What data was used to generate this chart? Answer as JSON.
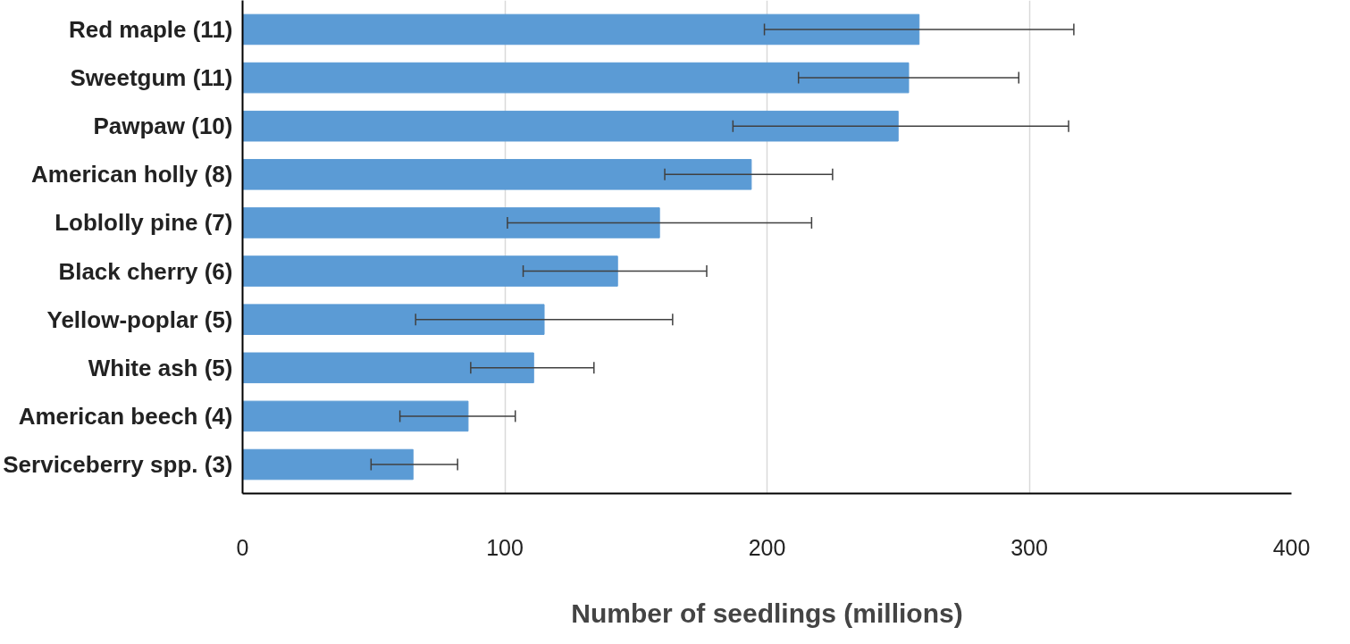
{
  "chart_data": {
    "type": "bar",
    "orientation": "horizontal",
    "xlabel": "Number of seedlings (millions)",
    "categories": [
      "Red maple (11)",
      "Sweetgum (11)",
      "Pawpaw (10)",
      "American holly (8)",
      "Loblolly pine (7)",
      "Black cherry (6)",
      "Yellow-poplar (5)",
      "White ash (5)",
      "American beech (4)",
      "Serviceberry spp. (3)"
    ],
    "values": [
      258,
      254,
      250,
      194,
      159,
      143,
      115,
      111,
      86,
      65
    ],
    "errors": [
      [
        199,
        317
      ],
      [
        212,
        296
      ],
      [
        187,
        315
      ],
      [
        161,
        225
      ],
      [
        101,
        217
      ],
      [
        107,
        177
      ],
      [
        66,
        164
      ],
      [
        87,
        134
      ],
      [
        60,
        104
      ],
      [
        49,
        82
      ]
    ],
    "color": "#5b9bd5",
    "xlim": [
      0,
      400
    ],
    "xticks": [
      0,
      100,
      200,
      300,
      400
    ],
    "grid": "x"
  }
}
